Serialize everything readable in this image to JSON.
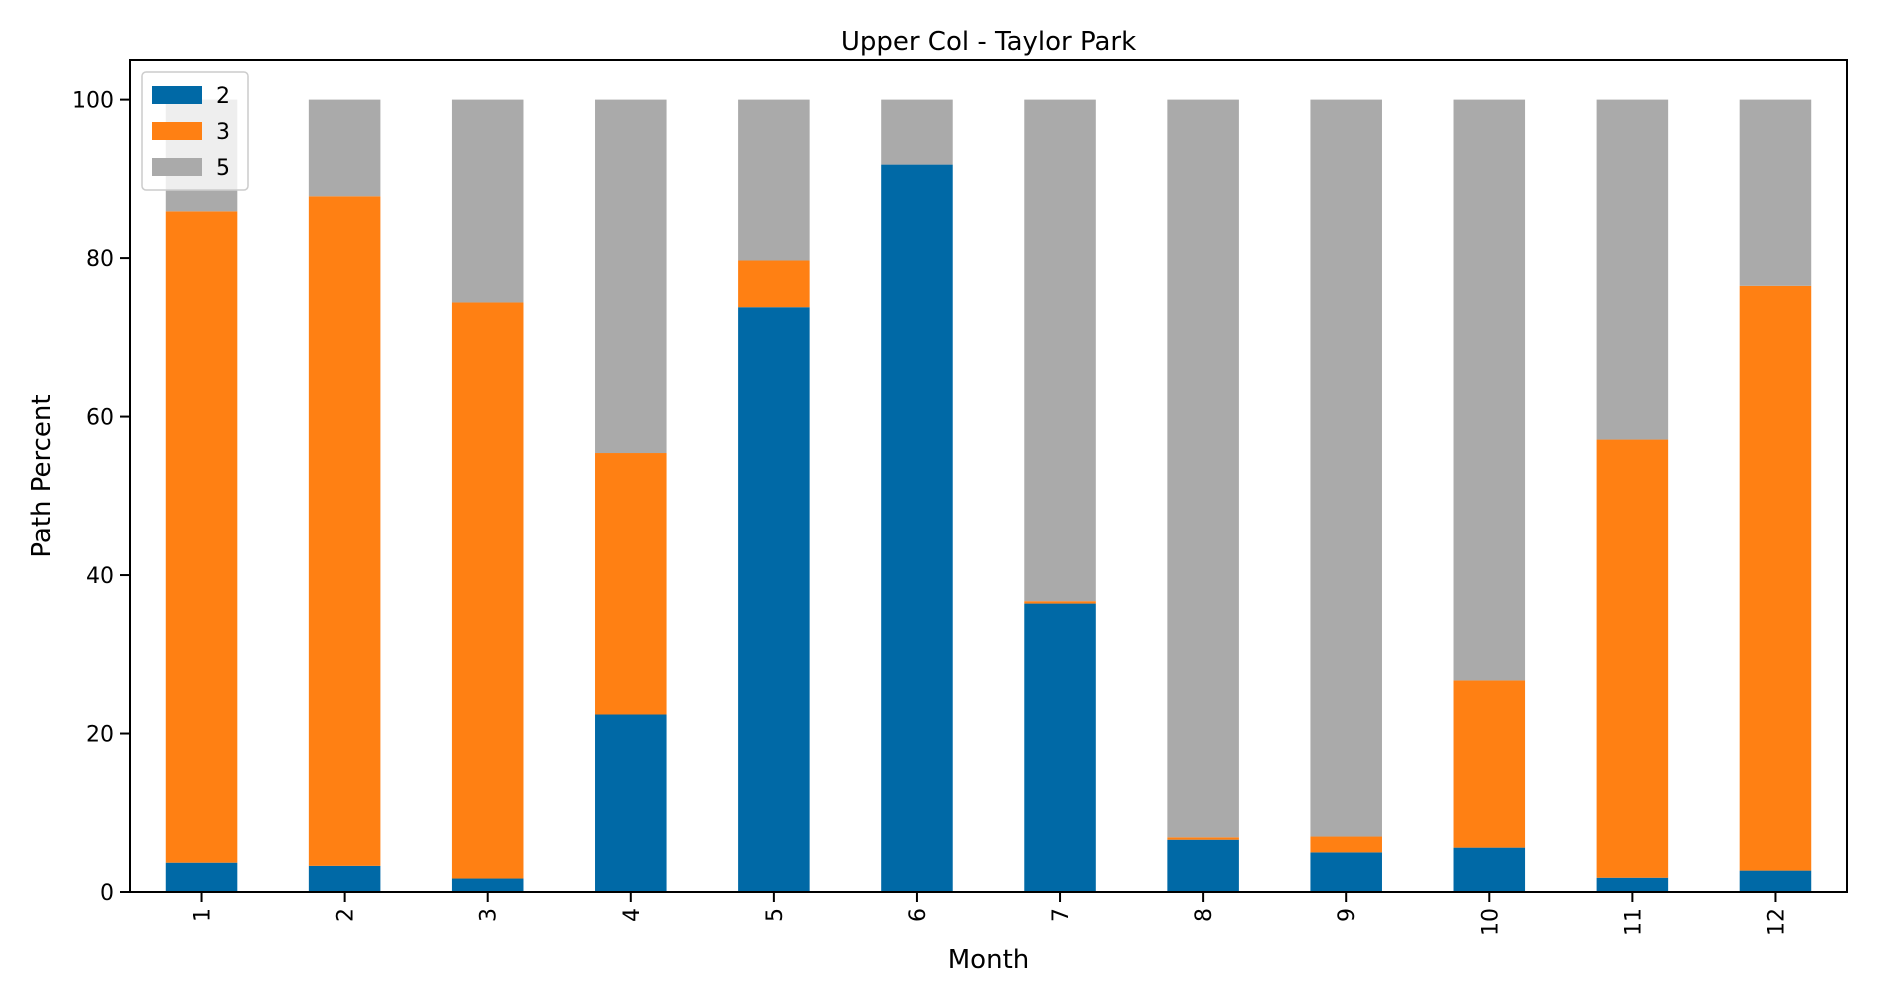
{
  "chart_data": {
    "type": "bar",
    "stacked": true,
    "title": "Upper Col - Taylor Park",
    "xlabel": "Month",
    "ylabel": "Path Percent",
    "categories": [
      "1",
      "2",
      "3",
      "4",
      "5",
      "6",
      "7",
      "8",
      "9",
      "10",
      "11",
      "12"
    ],
    "ylim": [
      0,
      105
    ],
    "yticks": [
      0,
      20,
      40,
      60,
      80,
      100
    ],
    "grid": false,
    "legend_position": "top-left",
    "series": [
      {
        "name": "2",
        "color": "#0069a6",
        "values": [
          3.7,
          3.3,
          1.7,
          22.4,
          73.8,
          91.8,
          36.4,
          6.6,
          5.0,
          5.6,
          1.8,
          2.7
        ]
      },
      {
        "name": "3",
        "color": "#ff8013",
        "values": [
          82.2,
          84.5,
          72.7,
          33.0,
          5.9,
          0.0,
          0.3,
          0.3,
          2.0,
          21.1,
          55.3,
          73.8
        ]
      },
      {
        "name": "5",
        "color": "#aaaaaa",
        "values": [
          14.1,
          12.2,
          25.6,
          44.6,
          20.3,
          8.2,
          63.3,
          93.1,
          93.0,
          73.3,
          42.9,
          23.5
        ]
      }
    ]
  }
}
